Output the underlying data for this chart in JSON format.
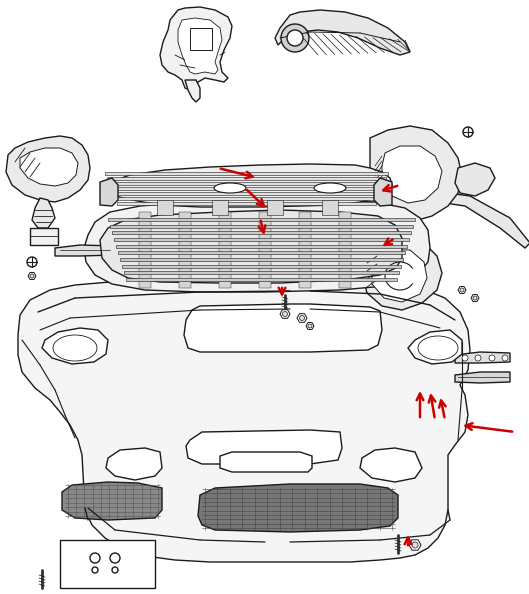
{
  "background_color": "#ffffff",
  "line_color": "#1a1a1a",
  "line_width": 1.0,
  "red_color": "#cc0000",
  "fig_width": 5.29,
  "fig_height": 5.94,
  "dpi": 100
}
